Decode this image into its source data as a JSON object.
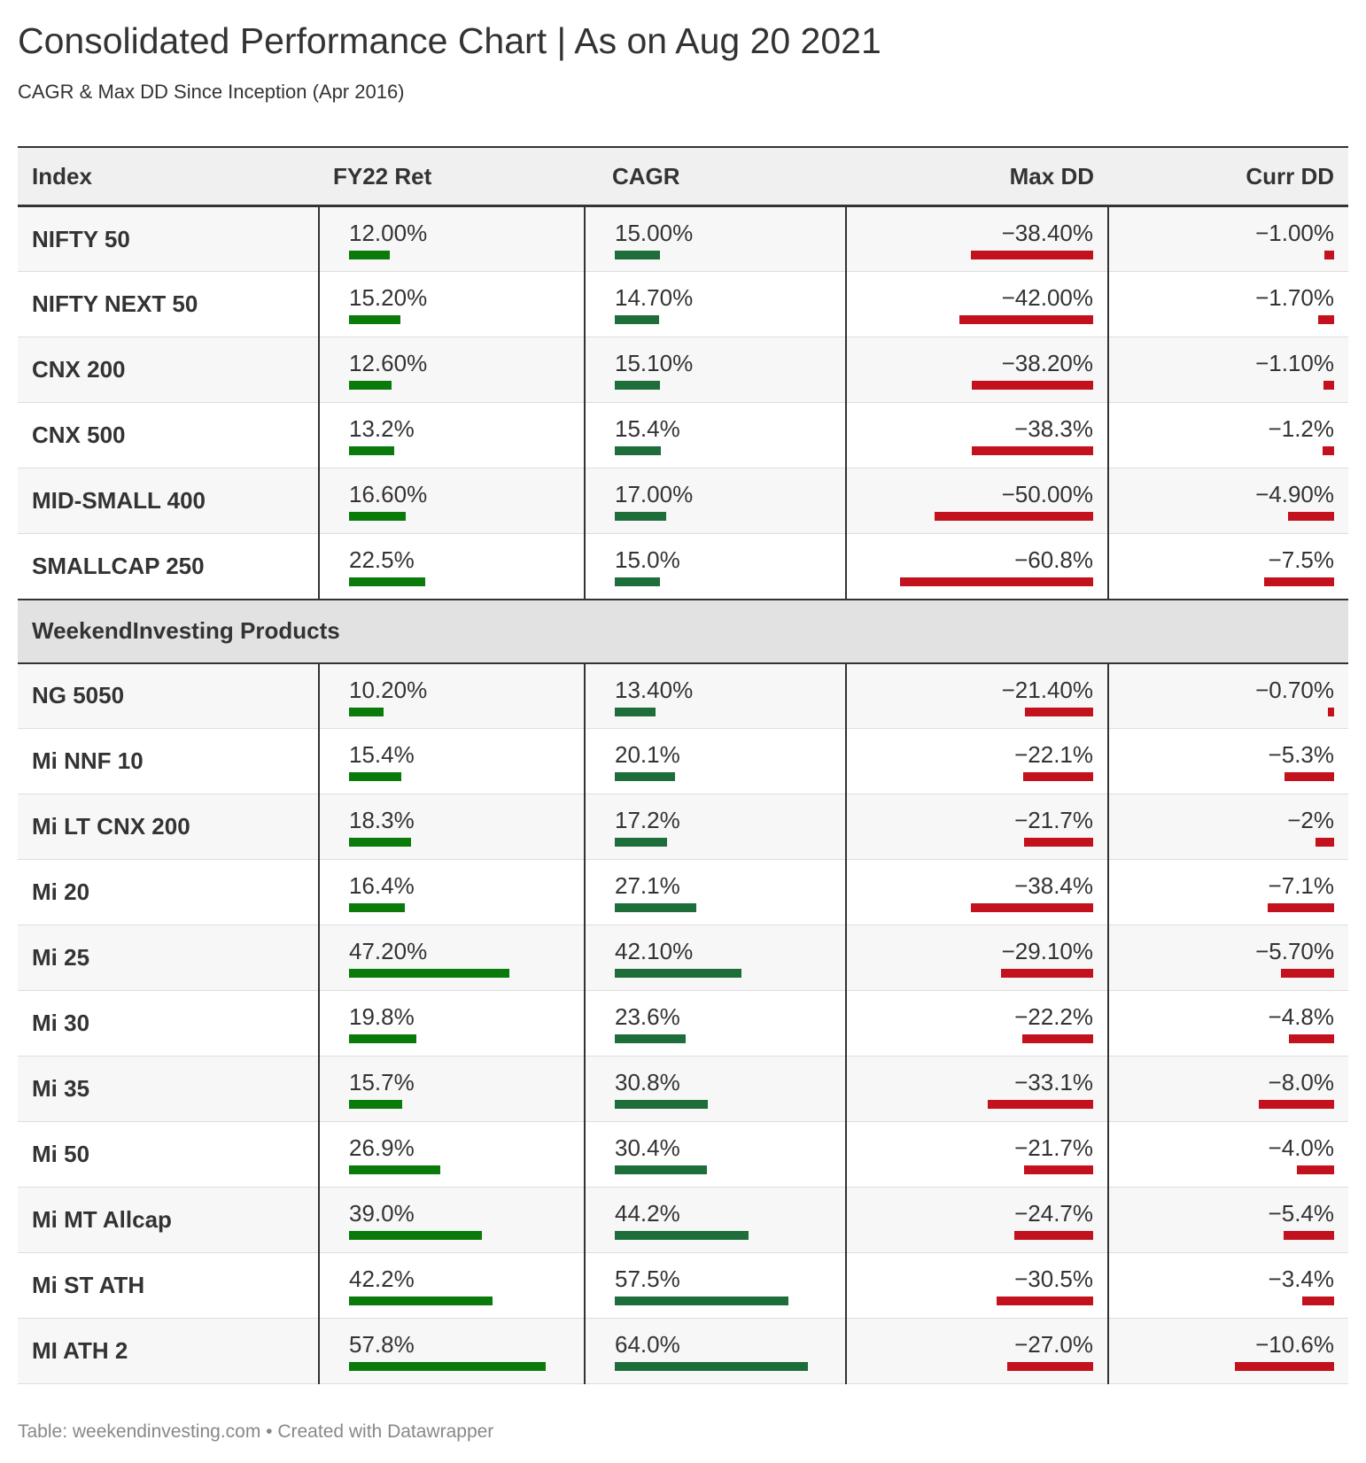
{
  "header": {
    "title": "Consolidated Performance Chart | As on Aug 20 2021",
    "subtitle": "CAGR & Max DD Since Inception (Apr 2016)"
  },
  "footer": {
    "text": "Table: weekendinvesting.com • Created with Datawrapper"
  },
  "colors": {
    "fy22": "#0a7a0a",
    "cagr": "#1e6e3c",
    "dd": "#c3111e"
  },
  "chart_data": {
    "type": "table",
    "columns": [
      "Index",
      "FY22 Ret",
      "CAGR",
      "Max DD",
      "Curr DD"
    ],
    "scale_max": {
      "fy22": 57.8,
      "cagr": 64.0,
      "maxdd": 60.8,
      "currdd": 10.6
    },
    "groups": [
      {
        "label": "",
        "rows": [
          {
            "name": "NIFTY 50",
            "fy22": {
              "text": "12.00%",
              "v": 12.0
            },
            "cagr": {
              "text": "15.00%",
              "v": 15.0
            },
            "maxdd": {
              "text": "−38.40%",
              "v": -38.4
            },
            "currdd": {
              "text": "−1.00%",
              "v": -1.0
            }
          },
          {
            "name": "NIFTY NEXT 50",
            "fy22": {
              "text": "15.20%",
              "v": 15.2
            },
            "cagr": {
              "text": "14.70%",
              "v": 14.7
            },
            "maxdd": {
              "text": "−42.00%",
              "v": -42.0
            },
            "currdd": {
              "text": "−1.70%",
              "v": -1.7
            }
          },
          {
            "name": "CNX 200",
            "fy22": {
              "text": "12.60%",
              "v": 12.6
            },
            "cagr": {
              "text": "15.10%",
              "v": 15.1
            },
            "maxdd": {
              "text": "−38.20%",
              "v": -38.2
            },
            "currdd": {
              "text": "−1.10%",
              "v": -1.1
            }
          },
          {
            "name": "CNX 500",
            "fy22": {
              "text": "13.2%",
              "v": 13.2
            },
            "cagr": {
              "text": "15.4%",
              "v": 15.4
            },
            "maxdd": {
              "text": "−38.3%",
              "v": -38.3
            },
            "currdd": {
              "text": "−1.2%",
              "v": -1.2
            }
          },
          {
            "name": "MID-SMALL 400",
            "fy22": {
              "text": "16.60%",
              "v": 16.6
            },
            "cagr": {
              "text": "17.00%",
              "v": 17.0
            },
            "maxdd": {
              "text": "−50.00%",
              "v": -50.0
            },
            "currdd": {
              "text": "−4.90%",
              "v": -4.9
            }
          },
          {
            "name": "SMALLCAP 250",
            "fy22": {
              "text": "22.5%",
              "v": 22.5
            },
            "cagr": {
              "text": "15.0%",
              "v": 15.0
            },
            "maxdd": {
              "text": "−60.8%",
              "v": -60.8
            },
            "currdd": {
              "text": "−7.5%",
              "v": -7.5
            }
          }
        ]
      },
      {
        "label": "WeekendInvesting Products",
        "rows": [
          {
            "name": "NG 5050",
            "fy22": {
              "text": "10.20%",
              "v": 10.2
            },
            "cagr": {
              "text": "13.40%",
              "v": 13.4
            },
            "maxdd": {
              "text": "−21.40%",
              "v": -21.4
            },
            "currdd": {
              "text": "−0.70%",
              "v": -0.7
            }
          },
          {
            "name": "Mi NNF 10",
            "fy22": {
              "text": "15.4%",
              "v": 15.4
            },
            "cagr": {
              "text": "20.1%",
              "v": 20.1
            },
            "maxdd": {
              "text": "−22.1%",
              "v": -22.1
            },
            "currdd": {
              "text": "−5.3%",
              "v": -5.3
            }
          },
          {
            "name": "Mi LT CNX 200",
            "fy22": {
              "text": "18.3%",
              "v": 18.3
            },
            "cagr": {
              "text": "17.2%",
              "v": 17.2
            },
            "maxdd": {
              "text": "−21.7%",
              "v": -21.7
            },
            "currdd": {
              "text": "−2%",
              "v": -2.0
            }
          },
          {
            "name": "Mi 20",
            "fy22": {
              "text": "16.4%",
              "v": 16.4
            },
            "cagr": {
              "text": "27.1%",
              "v": 27.1
            },
            "maxdd": {
              "text": "−38.4%",
              "v": -38.4
            },
            "currdd": {
              "text": "−7.1%",
              "v": -7.1
            }
          },
          {
            "name": "Mi 25",
            "fy22": {
              "text": "47.20%",
              "v": 47.2
            },
            "cagr": {
              "text": "42.10%",
              "v": 42.1
            },
            "maxdd": {
              "text": "−29.10%",
              "v": -29.1
            },
            "currdd": {
              "text": "−5.70%",
              "v": -5.7
            }
          },
          {
            "name": "Mi 30",
            "fy22": {
              "text": "19.8%",
              "v": 19.8
            },
            "cagr": {
              "text": "23.6%",
              "v": 23.6
            },
            "maxdd": {
              "text": "−22.2%",
              "v": -22.2
            },
            "currdd": {
              "text": "−4.8%",
              "v": -4.8
            }
          },
          {
            "name": "Mi 35",
            "fy22": {
              "text": "15.7%",
              "v": 15.7
            },
            "cagr": {
              "text": "30.8%",
              "v": 30.8
            },
            "maxdd": {
              "text": "−33.1%",
              "v": -33.1
            },
            "currdd": {
              "text": "−8.0%",
              "v": -8.0
            }
          },
          {
            "name": "Mi 50",
            "fy22": {
              "text": "26.9%",
              "v": 26.9
            },
            "cagr": {
              "text": "30.4%",
              "v": 30.4
            },
            "maxdd": {
              "text": "−21.7%",
              "v": -21.7
            },
            "currdd": {
              "text": "−4.0%",
              "v": -4.0
            }
          },
          {
            "name": "Mi MT Allcap",
            "fy22": {
              "text": "39.0%",
              "v": 39.0
            },
            "cagr": {
              "text": "44.2%",
              "v": 44.2
            },
            "maxdd": {
              "text": "−24.7%",
              "v": -24.7
            },
            "currdd": {
              "text": "−5.4%",
              "v": -5.4
            }
          },
          {
            "name": "Mi ST ATH",
            "fy22": {
              "text": "42.2%",
              "v": 42.2
            },
            "cagr": {
              "text": "57.5%",
              "v": 57.5
            },
            "maxdd": {
              "text": "−30.5%",
              "v": -30.5
            },
            "currdd": {
              "text": "−3.4%",
              "v": -3.4
            }
          },
          {
            "name": "MI ATH 2",
            "fy22": {
              "text": "57.8%",
              "v": 57.8
            },
            "cagr": {
              "text": "64.0%",
              "v": 64.0
            },
            "maxdd": {
              "text": "−27.0%",
              "v": -27.0
            },
            "currdd": {
              "text": "−10.6%",
              "v": -10.6
            }
          }
        ]
      }
    ]
  }
}
